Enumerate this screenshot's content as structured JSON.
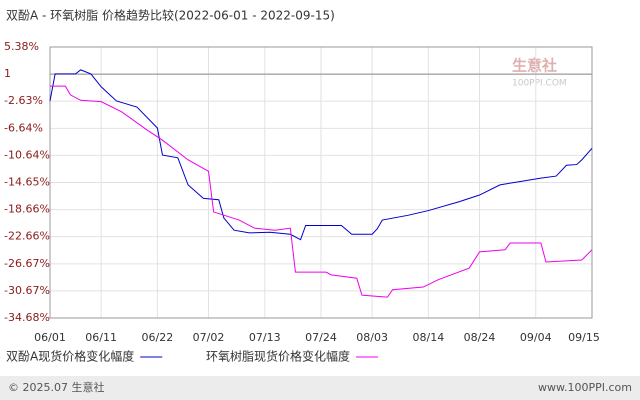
{
  "chart_data": {
    "type": "line",
    "title": "双酚A - 环氧树脂 价格趋势比较(2022-06-01 - 2022-09-15)",
    "xlim": [
      "06/01",
      "09/15"
    ],
    "xticks": [
      "06/01",
      "06/11",
      "06/22",
      "07/02",
      "07/13",
      "07/24",
      "08/03",
      "08/14",
      "08/24",
      "09/04",
      "09/15"
    ],
    "ylim": [
      -34.68,
      5.38
    ],
    "yticks": [
      {
        "value": 5.38,
        "label": "5.38%"
      },
      {
        "value": 1.37,
        "label": "1"
      },
      {
        "value": -2.63,
        "label": "-2.63%"
      },
      {
        "value": -6.64,
        "label": "-6.64%"
      },
      {
        "value": -10.64,
        "label": "-10.64%"
      },
      {
        "value": -14.65,
        "label": "-14.65%"
      },
      {
        "value": -18.66,
        "label": "-18.66%"
      },
      {
        "value": -22.66,
        "label": "-22.66%"
      },
      {
        "value": -26.67,
        "label": "-26.67%"
      },
      {
        "value": -30.67,
        "label": "-30.67%"
      },
      {
        "value": -34.68,
        "label": "-34.68%"
      }
    ],
    "ref_line": 1.37,
    "grid": true,
    "legend": "bottom",
    "series": [
      {
        "name": "双酚A现货价格变化幅度",
        "color": "#0000cc",
        "x": [
          "06/01",
          "06/02",
          "06/06",
          "06/07",
          "06/09",
          "06/11",
          "06/14",
          "06/18",
          "06/22",
          "06/23",
          "06/26",
          "06/28",
          "07/01",
          "07/04",
          "07/05",
          "07/07",
          "07/10",
          "07/14",
          "07/18",
          "07/20",
          "07/21",
          "07/28",
          "07/30",
          "08/03",
          "08/04",
          "08/05",
          "08/10",
          "08/14",
          "08/20",
          "08/24",
          "08/28",
          "09/01",
          "09/05",
          "09/08",
          "09/10",
          "09/12",
          "09/13",
          "09/15"
        ],
        "values": [
          -2.6,
          1.4,
          1.4,
          2.0,
          1.4,
          -0.5,
          -2.6,
          -3.5,
          -6.6,
          -10.6,
          -11,
          -15,
          -17,
          -17.2,
          -19.9,
          -21.7,
          -22.1,
          -22,
          -22.3,
          -23.1,
          -21,
          -21,
          -22.3,
          -22.3,
          -21.5,
          -20.2,
          -19.5,
          -18.8,
          -17.5,
          -16.5,
          -15,
          -14.5,
          -14,
          -13.7,
          -12.1,
          -12,
          -11.3,
          -9.6
        ]
      },
      {
        "name": "环氧树脂现货价格变化幅度",
        "color": "#ee00ee",
        "x": [
          "06/01",
          "06/04",
          "06/05",
          "06/07",
          "06/11",
          "06/15",
          "06/20",
          "06/23",
          "06/28",
          "07/02",
          "07/03",
          "07/08",
          "07/11",
          "07/15",
          "07/18",
          "07/19",
          "07/25",
          "07/26",
          "07/31",
          "08/01",
          "08/06",
          "08/07",
          "08/13",
          "08/16",
          "08/22",
          "08/24",
          "08/29",
          "08/30",
          "09/05",
          "09/06",
          "09/13",
          "09/15"
        ],
        "values": [
          -0.4,
          -0.4,
          -1.7,
          -2.5,
          -2.7,
          -4.2,
          -6.9,
          -8.4,
          -11.3,
          -13,
          -19,
          -20.2,
          -21.4,
          -21.7,
          -21.4,
          -27.9,
          -27.9,
          -28.3,
          -28.8,
          -31.3,
          -31.6,
          -30.5,
          -30.1,
          -29,
          -27.3,
          -24.9,
          -24.6,
          -23.6,
          -23.6,
          -26.4,
          -26.1,
          -24.6
        ]
      }
    ]
  },
  "watermark": {
    "name": "生意社",
    "site": "100PPI.COM"
  },
  "footer": {
    "left": "© 2025.07 生意社",
    "right": "www.100PPI.com"
  }
}
